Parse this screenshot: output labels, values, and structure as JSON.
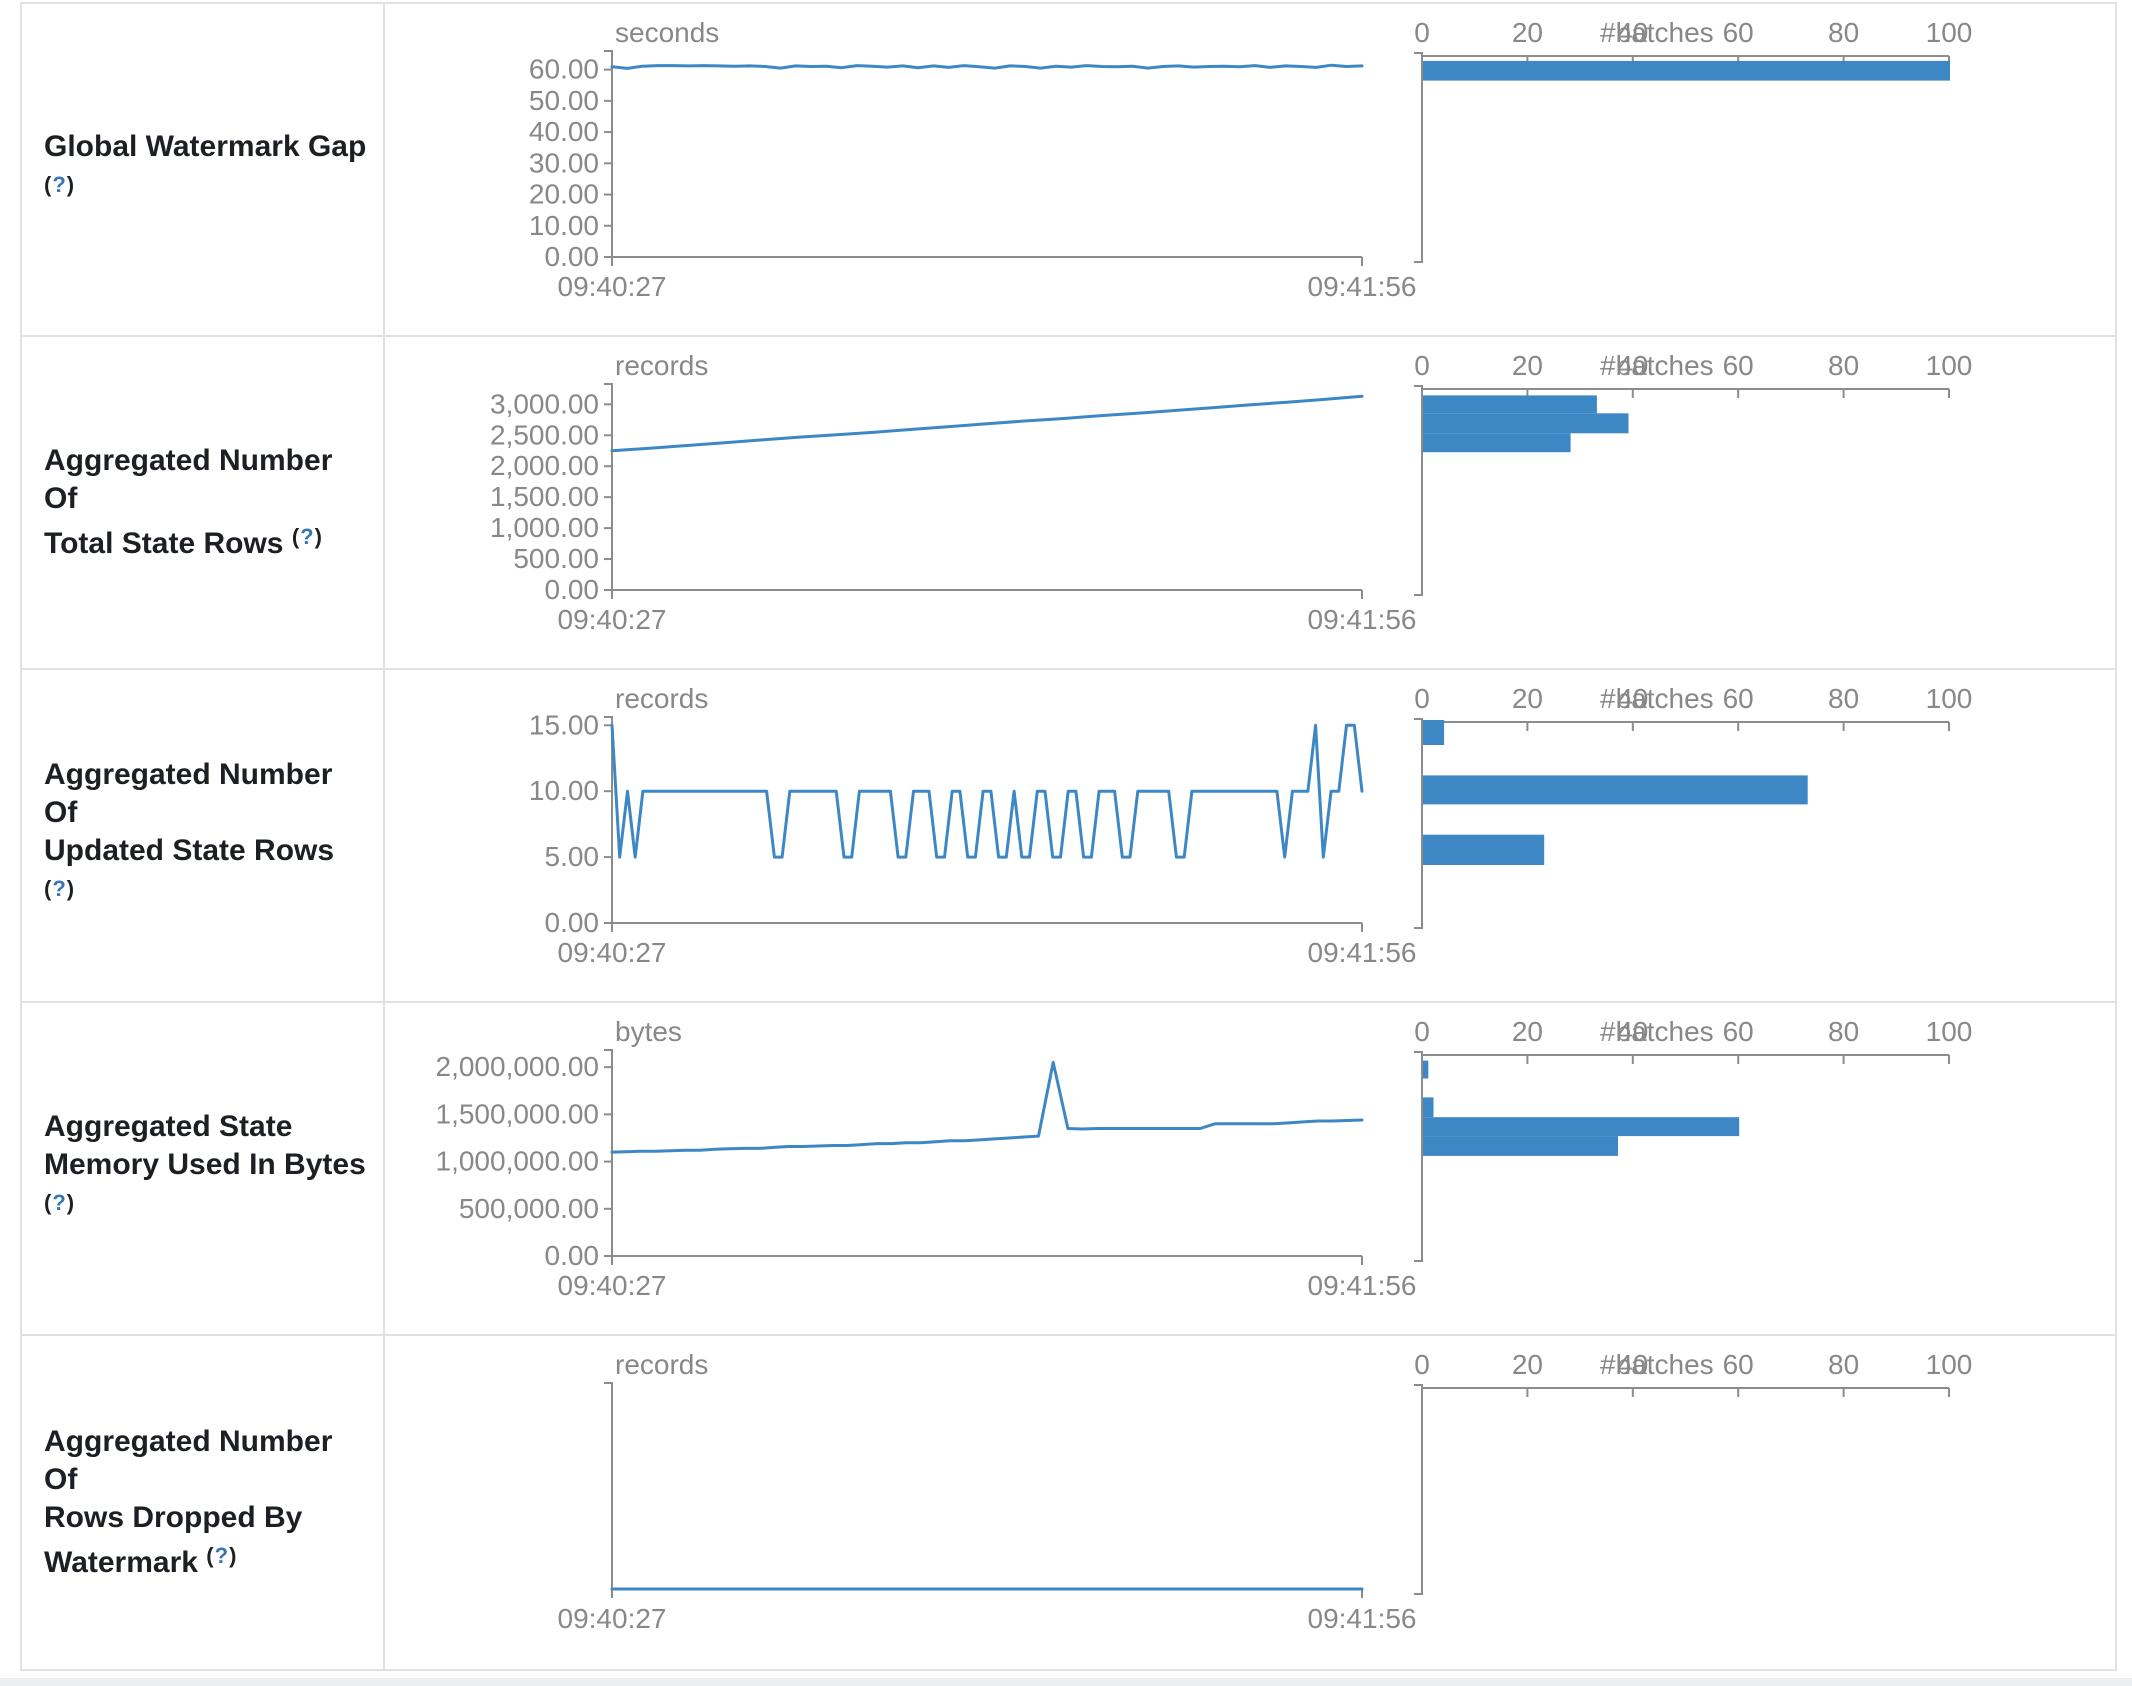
{
  "help": {
    "open": "(",
    "q": "?",
    "close": ")"
  },
  "colors": {
    "accent": "#3e87c5",
    "axis": "#8c8c8c",
    "axis_text": "#888888",
    "label_text": "#1c1f23",
    "help_link": "#3477b5",
    "border": "#dee2e6"
  },
  "rows": [
    {
      "label": "Global Watermark Gap\n"
    },
    {
      "label": "Aggregated Number Of\nTotal State Rows "
    },
    {
      "label": "Aggregated Number Of\nUpdated State Rows "
    },
    {
      "label": "Aggregated State\nMemory Used In Bytes\n"
    },
    {
      "label": "Aggregated Number Of\nRows Dropped By\nWatermark "
    }
  ],
  "chart_data": [
    {
      "type": "line",
      "metric": "Global Watermark Gap",
      "title": "seconds",
      "x_start": "09:40:27",
      "x_end": "09:41:56",
      "ylim": [
        0,
        65
      ],
      "y_ticks": [
        {
          "v": 60,
          "label": "60.00"
        },
        {
          "v": 50,
          "label": "50.00"
        },
        {
          "v": 40,
          "label": "40.00"
        },
        {
          "v": 30,
          "label": "30.00"
        },
        {
          "v": 20,
          "label": "20.00"
        },
        {
          "v": 10,
          "label": "10.00"
        },
        {
          "v": 0,
          "label": "0.00"
        }
      ],
      "values": [
        60.9,
        60.4,
        61.1,
        61.3,
        61.3,
        61.2,
        61.3,
        61.2,
        61.1,
        61.2,
        61.0,
        60.5,
        61.2,
        61.0,
        61.1,
        60.6,
        61.3,
        61.1,
        60.8,
        61.2,
        60.6,
        61.2,
        60.7,
        61.3,
        60.9,
        60.5,
        61.2,
        61.0,
        60.5,
        61.1,
        60.8,
        61.3,
        61.0,
        60.9,
        61.1,
        60.5,
        61.0,
        61.2,
        60.8,
        61.0,
        61.1,
        60.9,
        61.3,
        60.7,
        61.2,
        61.0,
        60.7,
        61.4,
        61.0,
        61.2
      ],
      "histogram": {
        "xlabel": "#batches",
        "xlim": [
          0,
          100
        ],
        "x_ticks": [
          {
            "v": 0,
            "label": "0"
          },
          {
            "v": 20,
            "label": "20"
          },
          {
            "v": 40,
            "label": "40"
          },
          {
            "v": 60,
            "label": "60"
          },
          {
            "v": 80,
            "label": "80"
          },
          {
            "v": 100,
            "label": "100"
          }
        ],
        "bars": [
          {
            "range": [
              56.5,
              62.8
            ],
            "count": 100
          }
        ]
      }
    },
    {
      "type": "line",
      "metric": "Aggregated Number Of Total State Rows",
      "title": "records",
      "x_start": "09:40:27",
      "x_end": "09:41:56",
      "ylim": [
        0,
        3280
      ],
      "y_ticks": [
        {
          "v": 3000,
          "label": "3,000.00"
        },
        {
          "v": 2500,
          "label": "2,500.00"
        },
        {
          "v": 2000,
          "label": "2,000.00"
        },
        {
          "v": 1500,
          "label": "1,500.00"
        },
        {
          "v": 1000,
          "label": "1,000.00"
        },
        {
          "v": 500,
          "label": "500.00"
        },
        {
          "v": 0,
          "label": "0.00"
        }
      ],
      "values": [
        2250,
        2290,
        2335,
        2380,
        2425,
        2470,
        2510,
        2550,
        2595,
        2640,
        2685,
        2730,
        2770,
        2815,
        2855,
        2900,
        2945,
        2990,
        3035,
        3080,
        3130
      ],
      "histogram": {
        "xlabel": "#batches",
        "xlim": [
          0,
          100
        ],
        "x_ticks": [
          {
            "v": 0,
            "label": "0"
          },
          {
            "v": 20,
            "label": "20"
          },
          {
            "v": 40,
            "label": "40"
          },
          {
            "v": 60,
            "label": "60"
          },
          {
            "v": 80,
            "label": "80"
          },
          {
            "v": 100,
            "label": "100"
          }
        ],
        "bars": [
          {
            "range": [
              2855,
              3145
            ],
            "count": 33
          },
          {
            "range": [
              2532,
              2855
            ],
            "count": 39
          },
          {
            "range": [
              2226,
              2532
            ],
            "count": 28
          }
        ]
      }
    },
    {
      "type": "line",
      "metric": "Aggregated Number Of Updated State Rows",
      "title": "records",
      "x_start": "09:40:27",
      "x_end": "09:41:56",
      "ylim": [
        0,
        15.4
      ],
      "y_ticks": [
        {
          "v": 15,
          "label": "15.00"
        },
        {
          "v": 10,
          "label": "10.00"
        },
        {
          "v": 5,
          "label": "5.00"
        },
        {
          "v": 0,
          "label": "0.00"
        }
      ],
      "values": [
        15,
        5,
        10,
        5,
        10,
        10,
        10,
        10,
        10,
        10,
        10,
        10,
        10,
        10,
        10,
        10,
        10,
        10,
        10,
        10,
        10,
        5,
        5,
        10,
        10,
        10,
        10,
        10,
        10,
        10,
        5,
        5,
        10,
        10,
        10,
        10,
        10,
        5,
        5,
        10,
        10,
        10,
        5,
        5,
        10,
        10,
        5,
        5,
        10,
        10,
        5,
        5,
        10,
        5,
        5,
        10,
        10,
        5,
        5,
        10,
        10,
        5,
        5,
        10,
        10,
        10,
        5,
        5,
        10,
        10,
        10,
        10,
        10,
        5,
        5,
        10,
        10,
        10,
        10,
        10,
        10,
        10,
        10,
        10,
        10,
        10,
        10,
        5,
        10,
        10,
        10,
        15,
        5,
        10,
        10,
        15,
        15,
        10
      ],
      "histogram": {
        "xlabel": "#batches",
        "xlim": [
          0,
          100
        ],
        "x_ticks": [
          {
            "v": 0,
            "label": "0"
          },
          {
            "v": 20,
            "label": "20"
          },
          {
            "v": 40,
            "label": "40"
          },
          {
            "v": 60,
            "label": "60"
          },
          {
            "v": 80,
            "label": "80"
          },
          {
            "v": 100,
            "label": "100"
          }
        ],
        "bars": [
          {
            "range": [
              13.5,
              15.4
            ],
            "count": 4
          },
          {
            "range": [
              9.0,
              11.2
            ],
            "count": 73
          },
          {
            "range": [
              4.4,
              6.7
            ],
            "count": 23
          }
        ]
      }
    },
    {
      "type": "line",
      "metric": "Aggregated State Memory Used In Bytes",
      "title": "bytes",
      "x_start": "09:40:27",
      "x_end": "09:41:56",
      "ylim": [
        0,
        2150000
      ],
      "y_ticks": [
        {
          "v": 2000000,
          "label": "2,000,000.00"
        },
        {
          "v": 1500000,
          "label": "1,500,000.00"
        },
        {
          "v": 1000000,
          "label": "1,000,000.00"
        },
        {
          "v": 500000,
          "label": "500,000.00"
        },
        {
          "v": 0,
          "label": "0.00"
        }
      ],
      "values": [
        1100000,
        1105000,
        1110000,
        1110000,
        1115000,
        1120000,
        1120000,
        1130000,
        1135000,
        1140000,
        1140000,
        1150000,
        1160000,
        1160000,
        1165000,
        1170000,
        1170000,
        1180000,
        1190000,
        1190000,
        1200000,
        1200000,
        1210000,
        1220000,
        1220000,
        1230000,
        1240000,
        1250000,
        1260000,
        1270000,
        2050000,
        1350000,
        1345000,
        1350000,
        1350000,
        1350000,
        1350000,
        1350000,
        1350000,
        1350000,
        1350000,
        1400000,
        1400000,
        1400000,
        1400000,
        1400000,
        1410000,
        1420000,
        1430000,
        1430000,
        1435000,
        1440000
      ],
      "histogram": {
        "xlabel": "#batches",
        "xlim": [
          0,
          100
        ],
        "x_ticks": [
          {
            "v": 0,
            "label": "0"
          },
          {
            "v": 20,
            "label": "20"
          },
          {
            "v": 40,
            "label": "40"
          },
          {
            "v": 60,
            "label": "60"
          },
          {
            "v": 80,
            "label": "80"
          },
          {
            "v": 100,
            "label": "100"
          }
        ],
        "bars": [
          {
            "range": [
              1880000,
              2070000
            ],
            "count": 1
          },
          {
            "range": [
              1470000,
              1680000
            ],
            "count": 2
          },
          {
            "range": [
              1270000,
              1470000
            ],
            "count": 60
          },
          {
            "range": [
              1060000,
              1270000
            ],
            "count": 37
          }
        ]
      }
    },
    {
      "type": "line",
      "metric": "Aggregated Number Of Rows Dropped By Watermark",
      "title": "records",
      "x_start": "09:40:27",
      "x_end": "09:41:56",
      "ylim": [
        0,
        1
      ],
      "y_ticks": [],
      "values": [
        0,
        0,
        0,
        0,
        0
      ],
      "histogram": {
        "xlabel": "#batches",
        "xlim": [
          0,
          100
        ],
        "x_ticks": [
          {
            "v": 0,
            "label": "0"
          },
          {
            "v": 20,
            "label": "20"
          },
          {
            "v": 40,
            "label": "40"
          },
          {
            "v": 60,
            "label": "60"
          },
          {
            "v": 80,
            "label": "80"
          },
          {
            "v": 100,
            "label": "100"
          }
        ],
        "bars": []
      }
    }
  ]
}
